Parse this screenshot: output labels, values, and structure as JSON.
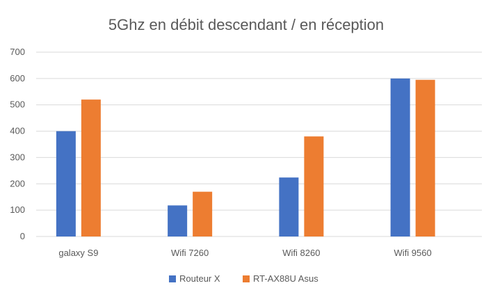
{
  "chart_data": {
    "type": "bar",
    "title": "5Ghz en débit descendant / en réception",
    "xlabel": "",
    "ylabel": "",
    "categories": [
      "galaxy S9",
      "Wifi 7260",
      "Wifi 8260",
      "Wifi 9560"
    ],
    "series": [
      {
        "name": "Routeur X",
        "color": "#4472c4",
        "values": [
          400,
          118,
          224,
          600
        ]
      },
      {
        "name": "RT-AX88U Asus",
        "color": "#ed7d31",
        "values": [
          520,
          170,
          380,
          595
        ]
      }
    ],
    "ylim": [
      0,
      700
    ],
    "yticks": [
      "0",
      "100",
      "200",
      "300",
      "400",
      "500",
      "600",
      "700"
    ],
    "grid": true,
    "legend": "bottom-center"
  }
}
